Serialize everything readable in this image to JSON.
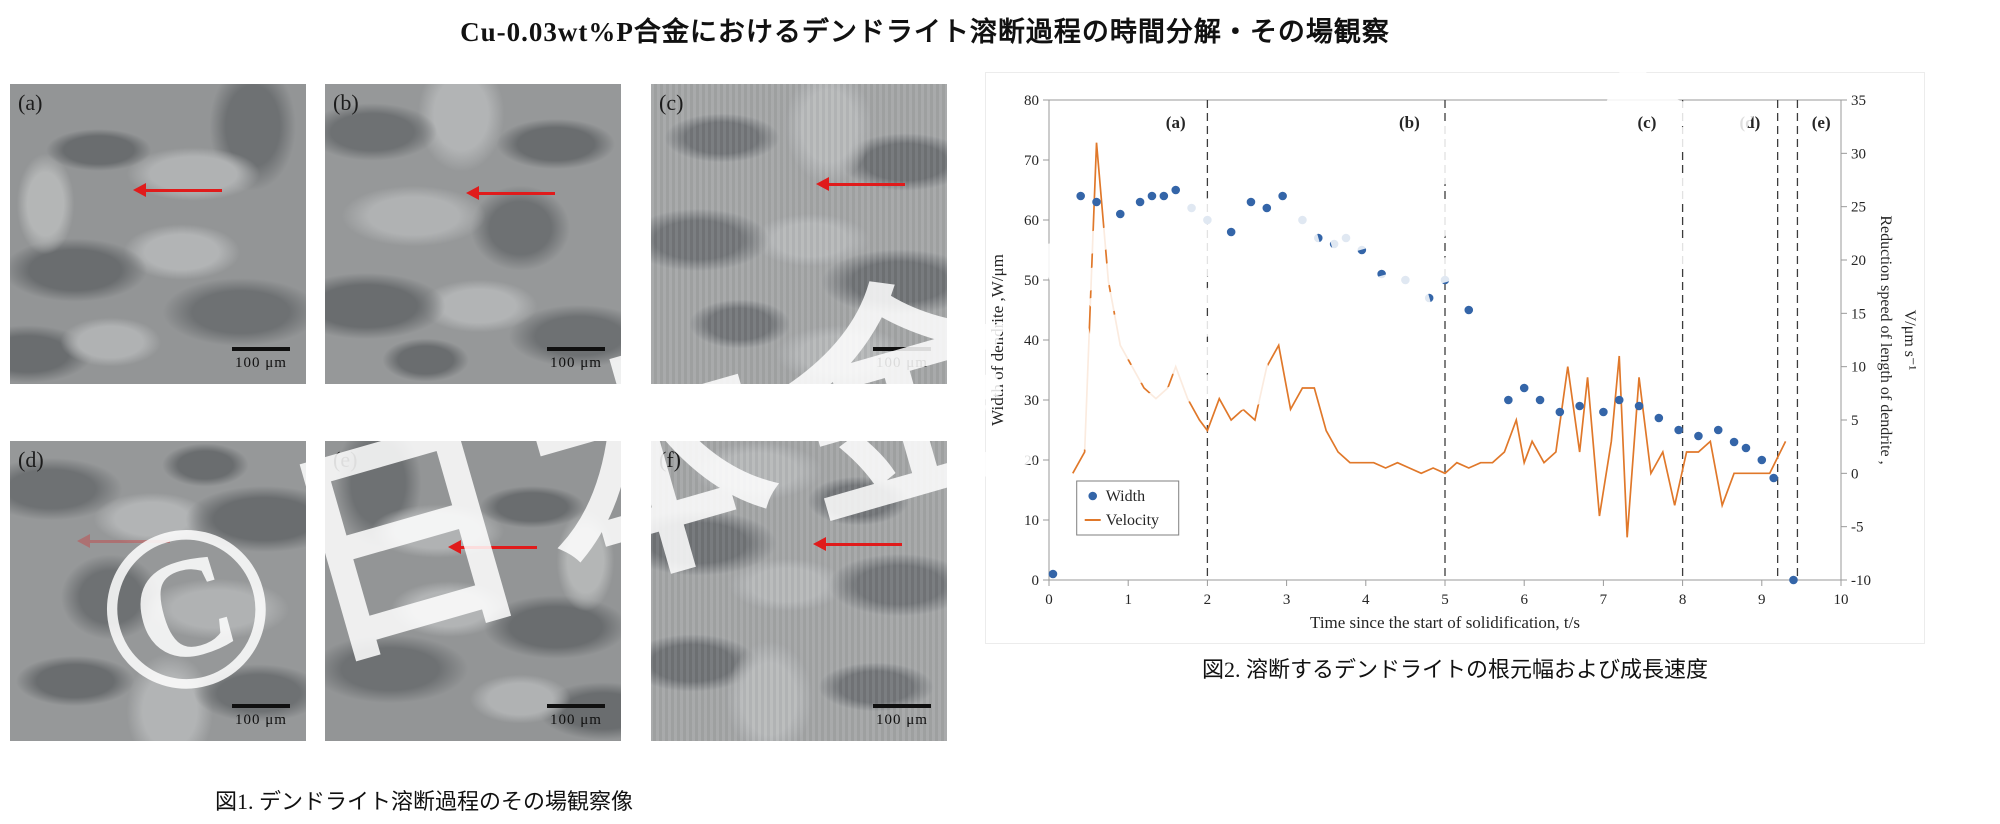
{
  "page_title": "Cu-0.03wt%P合金におけるデンドライト溶断過程の時間分解・その場観察",
  "watermark": "©日本金属学会",
  "figure1": {
    "caption": "図1. デンドライト溶断過程のその場観察像",
    "panels": [
      {
        "label": "(a)",
        "scale_bar": "100 μm"
      },
      {
        "label": "(b)",
        "scale_bar": "100 μm"
      },
      {
        "label": "(c)",
        "scale_bar": "100 μm"
      },
      {
        "label": "(d)",
        "scale_bar": "100 μm"
      },
      {
        "label": "(e)",
        "scale_bar": "100 μm"
      },
      {
        "label": "(f)",
        "scale_bar": "100 μm"
      }
    ]
  },
  "figure2": {
    "caption": "図2. 溶断するデンドライトの根元幅および成長速度"
  },
  "chart_data": {
    "type": "scatter",
    "title": "",
    "xlabel": "Time since the start of solidification, t/s",
    "ylabel_left": "Width of dendrite ,W/μm",
    "ylabel_right_line1": "Reduction speed of length of dendrite ,",
    "ylabel_right_line2": "V/μm s⁻¹",
    "xlim": [
      0,
      10
    ],
    "ylim_left": [
      0,
      80
    ],
    "ylim_right": [
      -10,
      35
    ],
    "x_ticks": [
      0,
      1,
      2,
      3,
      4,
      5,
      6,
      7,
      8,
      9,
      10
    ],
    "y_ticks_left": [
      0,
      10,
      20,
      30,
      40,
      50,
      60,
      70,
      80
    ],
    "y_ticks_right": [
      -10,
      -5,
      0,
      5,
      10,
      15,
      20,
      25,
      30,
      35
    ],
    "grid": false,
    "legend_position": "lower-left",
    "phase_lines": [
      {
        "x": 2,
        "label": "(a)",
        "label_x": 1.6
      },
      {
        "x": 5,
        "label": "(b)",
        "label_x": 4.55
      },
      {
        "x": 8,
        "label": "(c)",
        "label_x": 7.55
      },
      {
        "x": 9.2,
        "label": "(d)",
        "label_x": 8.85
      },
      {
        "x": 9.45,
        "label": "(e)",
        "label_x": 9.75
      }
    ],
    "series": [
      {
        "name": "Width",
        "type": "scatter",
        "axis": "left",
        "color": "#3465a8",
        "points": [
          [
            0.05,
            1
          ],
          [
            0.4,
            64
          ],
          [
            0.6,
            63
          ],
          [
            0.9,
            61
          ],
          [
            1.15,
            63
          ],
          [
            1.3,
            64
          ],
          [
            1.45,
            64
          ],
          [
            1.6,
            65
          ],
          [
            1.8,
            62
          ],
          [
            2.0,
            60
          ],
          [
            2.3,
            58
          ],
          [
            2.55,
            63
          ],
          [
            2.75,
            62
          ],
          [
            2.95,
            64
          ],
          [
            3.2,
            60
          ],
          [
            3.4,
            57
          ],
          [
            3.6,
            56
          ],
          [
            3.75,
            57
          ],
          [
            3.95,
            55
          ],
          [
            4.2,
            51
          ],
          [
            4.5,
            50
          ],
          [
            4.8,
            47
          ],
          [
            5.0,
            50
          ],
          [
            5.3,
            45
          ],
          [
            5.8,
            30
          ],
          [
            6.0,
            32
          ],
          [
            6.2,
            30
          ],
          [
            6.45,
            28
          ],
          [
            6.7,
            29
          ],
          [
            7.0,
            28
          ],
          [
            7.2,
            30
          ],
          [
            7.45,
            29
          ],
          [
            7.7,
            27
          ],
          [
            7.95,
            25
          ],
          [
            8.2,
            24
          ],
          [
            8.45,
            25
          ],
          [
            8.65,
            23
          ],
          [
            8.8,
            22
          ],
          [
            9.0,
            20
          ],
          [
            9.15,
            17
          ],
          [
            9.4,
            0
          ]
        ]
      },
      {
        "name": "Velocity",
        "type": "line",
        "axis": "right",
        "color": "#e0782a",
        "points": [
          [
            0.3,
            0
          ],
          [
            0.45,
            2
          ],
          [
            0.6,
            31
          ],
          [
            0.75,
            18
          ],
          [
            0.9,
            12
          ],
          [
            1.05,
            10
          ],
          [
            1.2,
            8
          ],
          [
            1.35,
            7
          ],
          [
            1.5,
            8
          ],
          [
            1.6,
            10
          ],
          [
            1.75,
            7
          ],
          [
            1.9,
            5
          ],
          [
            2.0,
            4
          ],
          [
            2.15,
            7
          ],
          [
            2.3,
            5
          ],
          [
            2.45,
            6
          ],
          [
            2.6,
            5
          ],
          [
            2.75,
            10
          ],
          [
            2.9,
            12
          ],
          [
            3.05,
            6
          ],
          [
            3.2,
            8
          ],
          [
            3.35,
            8
          ],
          [
            3.5,
            4
          ],
          [
            3.65,
            2
          ],
          [
            3.8,
            1
          ],
          [
            3.95,
            1
          ],
          [
            4.1,
            1
          ],
          [
            4.25,
            0.5
          ],
          [
            4.4,
            1
          ],
          [
            4.55,
            0.5
          ],
          [
            4.7,
            0
          ],
          [
            4.85,
            0.5
          ],
          [
            5.0,
            0
          ],
          [
            5.15,
            1
          ],
          [
            5.3,
            0.5
          ],
          [
            5.45,
            1
          ],
          [
            5.6,
            1
          ],
          [
            5.75,
            2
          ],
          [
            5.9,
            5
          ],
          [
            6.0,
            1
          ],
          [
            6.1,
            3
          ],
          [
            6.25,
            1
          ],
          [
            6.4,
            2
          ],
          [
            6.55,
            10
          ],
          [
            6.7,
            2
          ],
          [
            6.8,
            9
          ],
          [
            6.95,
            -4
          ],
          [
            7.1,
            3
          ],
          [
            7.2,
            11
          ],
          [
            7.3,
            -6
          ],
          [
            7.45,
            9
          ],
          [
            7.6,
            0
          ],
          [
            7.75,
            2
          ],
          [
            7.9,
            -3
          ],
          [
            8.05,
            2
          ],
          [
            8.2,
            2
          ],
          [
            8.35,
            3
          ],
          [
            8.5,
            -3
          ],
          [
            8.65,
            0
          ],
          [
            8.8,
            0
          ],
          [
            8.95,
            0
          ],
          [
            9.1,
            0
          ],
          [
            9.3,
            3
          ]
        ]
      }
    ]
  }
}
